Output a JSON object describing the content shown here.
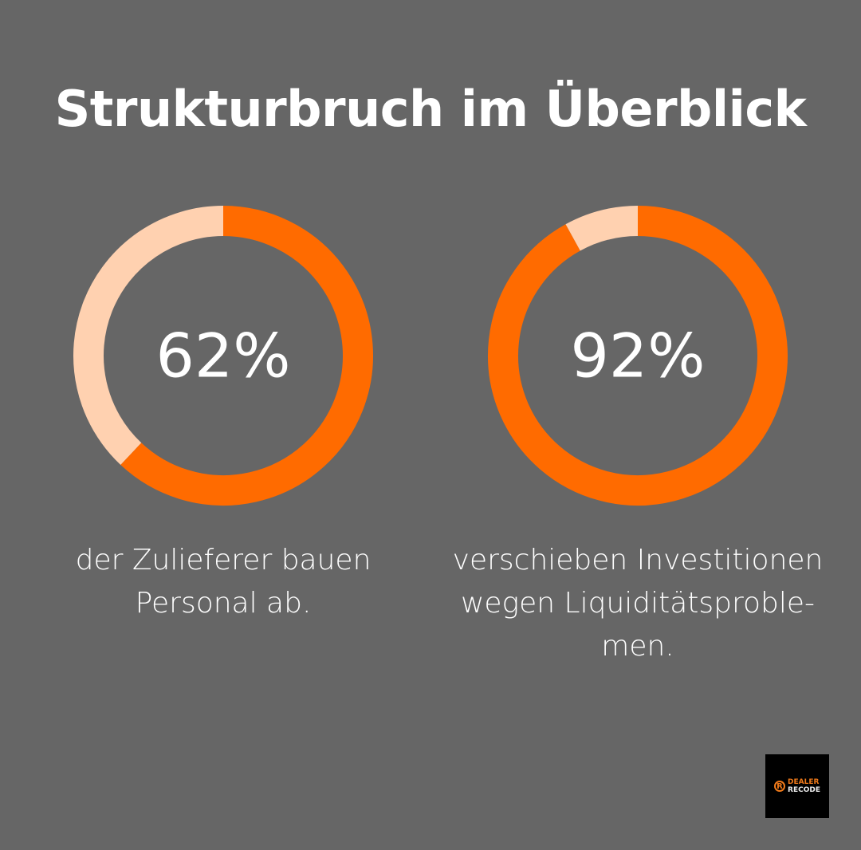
{
  "title": "Strukturbruch im Überblick",
  "colors": {
    "background": "#666666",
    "primary": "#FF6B00",
    "remainder": "#FFD1B0"
  },
  "chart_data": [
    {
      "type": "pie",
      "variant": "donut",
      "values": [
        62,
        38
      ],
      "label": "62%",
      "caption": "der Zulieferer bauen Personal ab."
    },
    {
      "type": "pie",
      "variant": "donut",
      "values": [
        92,
        8
      ],
      "label": "92%",
      "caption": "verschieben Investitionen wegen Liquiditätsproble-men."
    }
  ],
  "logo": {
    "line1": "DEALER",
    "line2": "RECODE"
  }
}
